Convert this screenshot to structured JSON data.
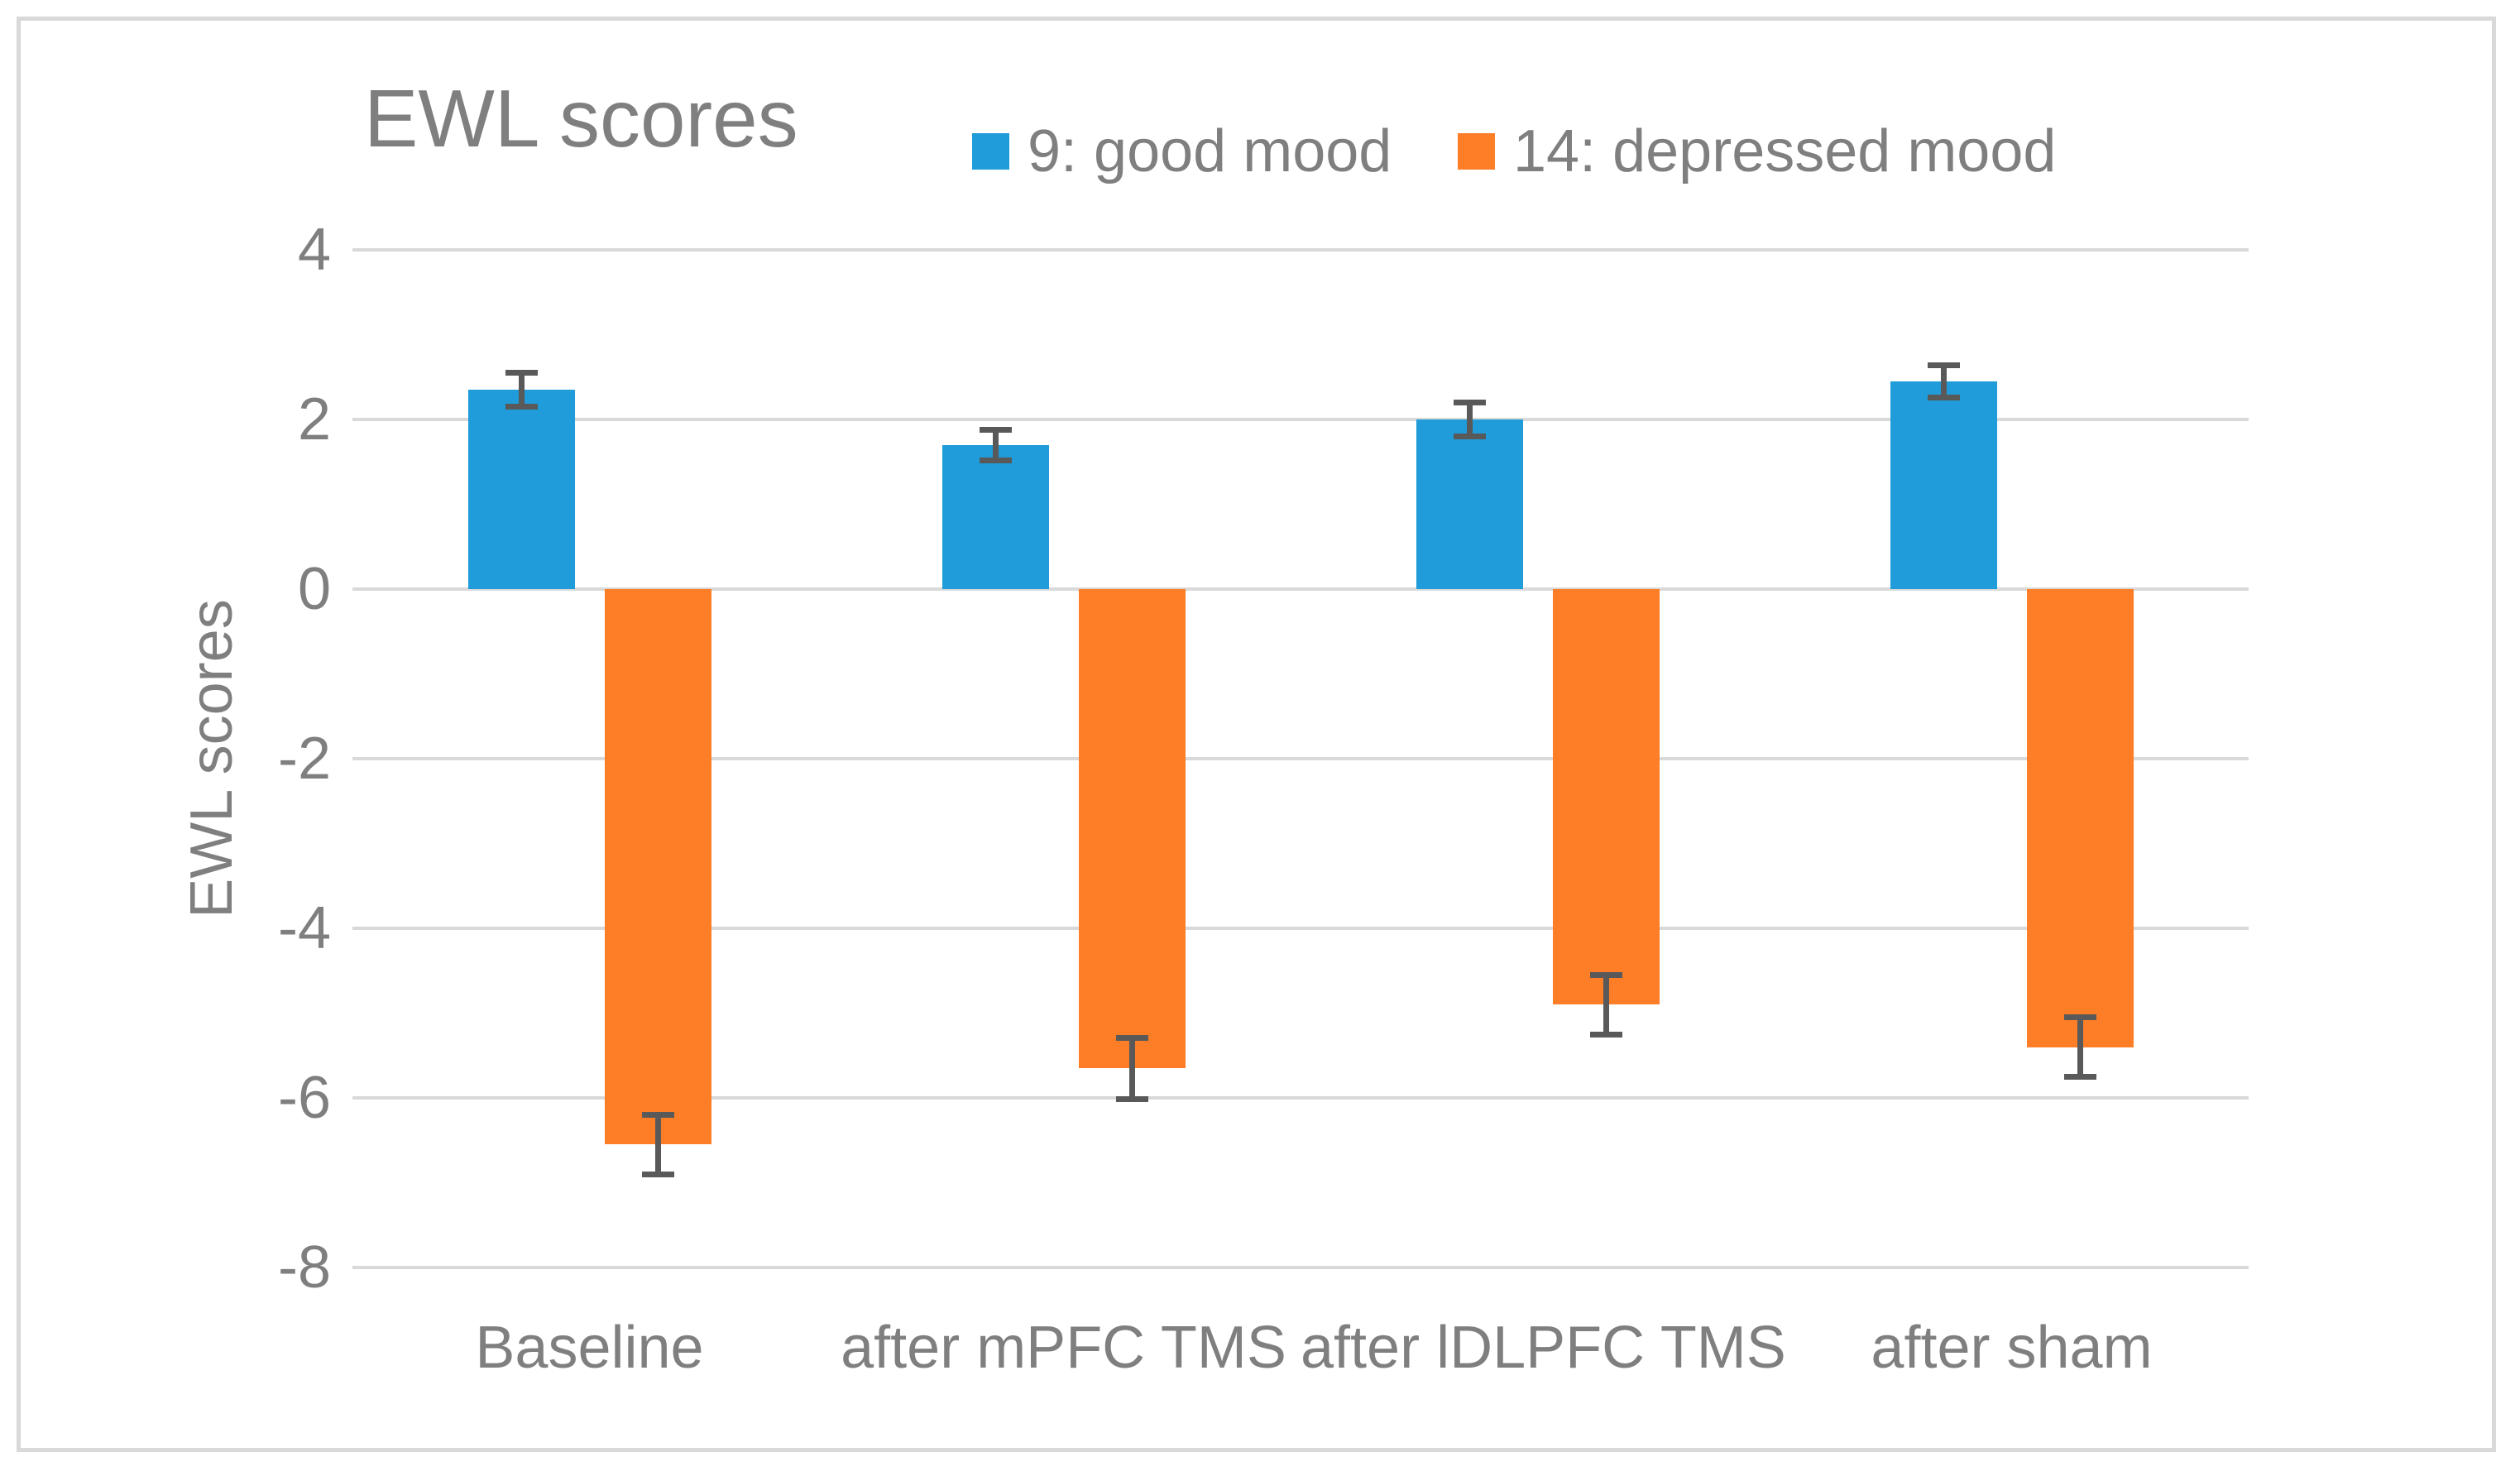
{
  "chart_data": {
    "type": "bar",
    "title": "EWL scores",
    "xlabel": "",
    "ylabel": "EWL scores",
    "ylim": [
      -8,
      4
    ],
    "yticks": [
      "4",
      "2",
      "0",
      "-2",
      "-4",
      "-6",
      "-8"
    ],
    "ytick_values": [
      4,
      2,
      0,
      -2,
      -4,
      -6,
      -8
    ],
    "grid": true,
    "legend_position": "top",
    "categories": [
      "Baseline",
      "after mPFC TMS",
      "after lDLPFC TMS",
      "after sham"
    ],
    "series": [
      {
        "name": "9: good mood",
        "color": "#1F9CD9",
        "values": [
          2.35,
          1.7,
          2.0,
          2.45
        ],
        "errors": [
          0.2,
          0.18,
          0.2,
          0.19
        ]
      },
      {
        "name": "14: depressed mood",
        "color": "#FD7E26",
        "values": [
          -6.55,
          -5.65,
          -4.9,
          -5.4
        ],
        "errors": [
          0.35,
          0.36,
          0.35,
          0.35
        ]
      }
    ],
    "error_bar_color": "#595959",
    "gridline_color": "#D9D9D9",
    "text_color": "#7F7F7F",
    "frame_border_color": "#D9D9D9"
  }
}
